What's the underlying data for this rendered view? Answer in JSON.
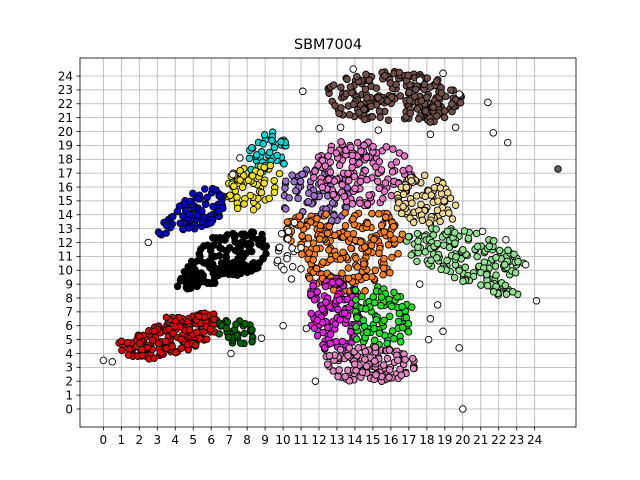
{
  "chart_data": {
    "type": "scatter",
    "title": "SBM7004",
    "xlabel": "",
    "ylabel": "",
    "xlim": [
      -1.3,
      26.3
    ],
    "ylim": [
      -1.3,
      25.3
    ],
    "xticks": [
      0,
      1,
      2,
      3,
      4,
      5,
      6,
      7,
      8,
      9,
      10,
      11,
      12,
      13,
      14,
      15,
      16,
      17,
      18,
      19,
      20,
      21,
      22,
      23,
      24
    ],
    "yticks": [
      0,
      1,
      2,
      3,
      4,
      5,
      6,
      7,
      8,
      9,
      10,
      11,
      12,
      13,
      14,
      15,
      16,
      17,
      18,
      19,
      20,
      21,
      22,
      23,
      24
    ],
    "grid": true,
    "point_stroke": "#000000",
    "clusters": [
      {
        "color": "#705048",
        "polygon": [
          [
            12.5,
            23.3
          ],
          [
            14,
            24.1
          ],
          [
            16,
            24.5
          ],
          [
            18,
            24.0
          ],
          [
            19.8,
            23.2
          ],
          [
            20.2,
            21.5
          ],
          [
            18.6,
            20.6
          ],
          [
            16.5,
            20.8
          ],
          [
            14.5,
            20.8
          ],
          [
            13.1,
            21.2
          ],
          [
            12.4,
            22.3
          ]
        ],
        "count": 220
      },
      {
        "color": "#00d7d7",
        "polygon": [
          [
            7.6,
            18.0
          ],
          [
            8.4,
            19.4
          ],
          [
            9.4,
            20.1
          ],
          [
            10.2,
            19.4
          ],
          [
            10.1,
            17.6
          ],
          [
            9.2,
            17.0
          ],
          [
            8.2,
            17.1
          ]
        ],
        "count": 45
      },
      {
        "color": "#f0e020",
        "polygon": [
          [
            6.9,
            16.6
          ],
          [
            7.6,
            17.6
          ],
          [
            9.1,
            17.7
          ],
          [
            10.0,
            17.1
          ],
          [
            9.8,
            15.6
          ],
          [
            9.0,
            14.5
          ],
          [
            7.7,
            14.2
          ],
          [
            6.9,
            15.0
          ]
        ],
        "count": 60
      },
      {
        "color": "#0000c8",
        "polygon": [
          [
            2.8,
            12.6
          ],
          [
            3.6,
            13.8
          ],
          [
            4.6,
            15.3
          ],
          [
            5.7,
            16.1
          ],
          [
            6.8,
            15.6
          ],
          [
            6.6,
            13.9
          ],
          [
            5.9,
            13.2
          ],
          [
            4.8,
            12.6
          ],
          [
            3.5,
            12.2
          ]
        ],
        "count": 90
      },
      {
        "color": "#000000",
        "polygon": [
          [
            3.9,
            9.1
          ],
          [
            4.6,
            10.2
          ],
          [
            5.4,
            11.6
          ],
          [
            6.5,
            12.8
          ],
          [
            8.8,
            12.8
          ],
          [
            9.2,
            11.3
          ],
          [
            8.6,
            10.0
          ],
          [
            7.1,
            9.5
          ],
          [
            5.4,
            8.6
          ],
          [
            4.2,
            8.7
          ]
        ],
        "count": 170
      },
      {
        "color": "#e00000",
        "polygon": [
          [
            0.6,
            4.4
          ],
          [
            1.6,
            3.7
          ],
          [
            3.2,
            3.5
          ],
          [
            5.0,
            4.4
          ],
          [
            6.2,
            5.4
          ],
          [
            6.4,
            6.8
          ],
          [
            5.3,
            7.0
          ],
          [
            3.5,
            6.6
          ],
          [
            2.1,
            5.4
          ],
          [
            0.9,
            4.9
          ]
        ],
        "count": 190
      },
      {
        "color": "#006400",
        "polygon": [
          [
            6.4,
            5.1
          ],
          [
            7.2,
            4.5
          ],
          [
            8.3,
            4.6
          ],
          [
            8.6,
            5.6
          ],
          [
            8.0,
            6.5
          ],
          [
            6.9,
            6.9
          ],
          [
            6.3,
            6.2
          ]
        ],
        "count": 32
      },
      {
        "color": "#9a70c8",
        "polygon": [
          [
            10.0,
            16.6
          ],
          [
            11.1,
            17.2
          ],
          [
            12.4,
            17.4
          ],
          [
            13.6,
            16.4
          ],
          [
            14.2,
            15.0
          ],
          [
            13.8,
            13.8
          ],
          [
            12.6,
            13.4
          ],
          [
            11.2,
            13.5
          ],
          [
            10.1,
            14.2
          ]
        ],
        "count": 80
      },
      {
        "color": "#e878c8",
        "polygon": [
          [
            11.6,
            18.0
          ],
          [
            12.6,
            18.9
          ],
          [
            13.6,
            19.5
          ],
          [
            15.0,
            19.3
          ],
          [
            16.8,
            18.4
          ],
          [
            17.3,
            17.2
          ],
          [
            16.9,
            15.5
          ],
          [
            15.5,
            14.7
          ],
          [
            13.8,
            14.6
          ],
          [
            12.4,
            15.6
          ],
          [
            11.7,
            16.7
          ]
        ],
        "count": 150
      },
      {
        "color": "#f0d890",
        "polygon": [
          [
            16.7,
            16.7
          ],
          [
            17.8,
            17.0
          ],
          [
            19.2,
            16.2
          ],
          [
            19.8,
            14.9
          ],
          [
            19.4,
            13.6
          ],
          [
            17.8,
            13.2
          ],
          [
            16.5,
            13.8
          ],
          [
            16.1,
            15.2
          ]
        ],
        "count": 80
      },
      {
        "color": "#ff7f20",
        "polygon": [
          [
            9.9,
            13.2
          ],
          [
            10.6,
            13.9
          ],
          [
            12.6,
            14.1
          ],
          [
            14.6,
            14.4
          ],
          [
            16.2,
            14.0
          ],
          [
            16.7,
            12.6
          ],
          [
            16.3,
            10.6
          ],
          [
            15.6,
            8.8
          ],
          [
            13.8,
            8.2
          ],
          [
            12.1,
            8.4
          ],
          [
            11.4,
            9.4
          ],
          [
            11.1,
            11.1
          ],
          [
            10.2,
            12.0
          ]
        ],
        "count": 240
      },
      {
        "color": "#90e090",
        "polygon": [
          [
            16.6,
            12.1
          ],
          [
            17.5,
            13.1
          ],
          [
            19.4,
            13.1
          ],
          [
            21.0,
            12.6
          ],
          [
            22.6,
            11.6
          ],
          [
            23.4,
            10.5
          ],
          [
            22.6,
            9.3
          ],
          [
            23.4,
            8.2
          ],
          [
            22.0,
            8.0
          ],
          [
            20.4,
            8.8
          ],
          [
            18.6,
            9.9
          ],
          [
            17.4,
            10.6
          ]
        ],
        "count": 170
      },
      {
        "color": "#e020e0",
        "polygon": [
          [
            11.7,
            9.3
          ],
          [
            13.1,
            9.4
          ],
          [
            14.1,
            8.6
          ],
          [
            14.3,
            6.9
          ],
          [
            14.2,
            5.2
          ],
          [
            13.5,
            4.2
          ],
          [
            12.2,
            4.3
          ],
          [
            11.6,
            5.4
          ],
          [
            11.4,
            7.0
          ],
          [
            11.5,
            8.3
          ]
        ],
        "count": 120
      },
      {
        "color": "#20e020",
        "polygon": [
          [
            14.0,
            8.6
          ],
          [
            15.3,
            8.8
          ],
          [
            16.3,
            8.5
          ],
          [
            17.2,
            7.6
          ],
          [
            17.1,
            5.6
          ],
          [
            16.4,
            4.6
          ],
          [
            15.0,
            4.4
          ],
          [
            14.0,
            5.1
          ]
        ],
        "count": 90
      },
      {
        "color": "#e088c0",
        "polygon": [
          [
            12.2,
            4.0
          ],
          [
            13.4,
            4.4
          ],
          [
            15.2,
            4.5
          ],
          [
            16.6,
            4.4
          ],
          [
            17.6,
            3.2
          ],
          [
            16.4,
            2.1
          ],
          [
            14.6,
            1.9
          ],
          [
            13.1,
            2.0
          ],
          [
            12.6,
            2.8
          ]
        ],
        "count": 120
      },
      {
        "color": "#ffffff",
        "polygon": [
          [
            9.8,
            12.6
          ],
          [
            10.6,
            13.6
          ],
          [
            11.4,
            12.2
          ],
          [
            11.0,
            10.0
          ],
          [
            10.4,
            9.2
          ],
          [
            9.6,
            10.6
          ]
        ],
        "count": 18
      }
    ],
    "scattered_points": [
      {
        "x": 25.3,
        "y": 17.3,
        "color": "#606060"
      },
      {
        "x": 20.0,
        "y": 0.0,
        "color": "#ffffff"
      },
      {
        "x": 22.5,
        "y": 19.2,
        "color": "#ffffff"
      },
      {
        "x": 21.4,
        "y": 22.1,
        "color": "#ffffff"
      },
      {
        "x": 21.7,
        "y": 19.9,
        "color": "#ffffff"
      },
      {
        "x": 11.1,
        "y": 22.9,
        "color": "#ffffff"
      },
      {
        "x": 13.9,
        "y": 24.5,
        "color": "#ffffff"
      },
      {
        "x": 18.9,
        "y": 24.2,
        "color": "#ffffff"
      },
      {
        "x": 19.8,
        "y": 22.7,
        "color": "#ffffff"
      },
      {
        "x": 17.6,
        "y": 23.7,
        "color": "#ffffff"
      },
      {
        "x": 12.0,
        "y": 20.2,
        "color": "#ffffff"
      },
      {
        "x": 19.6,
        "y": 20.3,
        "color": "#ffffff"
      },
      {
        "x": 18.2,
        "y": 19.8,
        "color": "#ffffff"
      },
      {
        "x": 0.0,
        "y": 3.5,
        "color": "#ffffff"
      },
      {
        "x": 0.5,
        "y": 3.4,
        "color": "#ffffff"
      },
      {
        "x": 10.0,
        "y": 6.0,
        "color": "#ffffff"
      },
      {
        "x": 8.8,
        "y": 5.1,
        "color": "#ffffff"
      },
      {
        "x": 7.1,
        "y": 4.0,
        "color": "#ffffff"
      },
      {
        "x": 11.9,
        "y": 6.4,
        "color": "#e020e0"
      },
      {
        "x": 11.8,
        "y": 2.0,
        "color": "#ffffff"
      },
      {
        "x": 18.6,
        "y": 7.5,
        "color": "#ffffff"
      },
      {
        "x": 18.2,
        "y": 6.5,
        "color": "#ffffff"
      },
      {
        "x": 18.1,
        "y": 5.0,
        "color": "#ffffff"
      },
      {
        "x": 19.8,
        "y": 4.4,
        "color": "#ffffff"
      },
      {
        "x": 18.9,
        "y": 5.6,
        "color": "#ffffff"
      },
      {
        "x": 24.1,
        "y": 7.8,
        "color": "#ffffff"
      },
      {
        "x": 23.5,
        "y": 10.4,
        "color": "#ffffff"
      },
      {
        "x": 21.1,
        "y": 12.8,
        "color": "#ffffff"
      },
      {
        "x": 22.4,
        "y": 12.2,
        "color": "#ffffff"
      },
      {
        "x": 11.0,
        "y": 10.1,
        "color": "#ffffff"
      },
      {
        "x": 10.5,
        "y": 11.6,
        "color": "#ffffff"
      },
      {
        "x": 9.7,
        "y": 10.7,
        "color": "#ffffff"
      },
      {
        "x": 10.3,
        "y": 12.8,
        "color": "#ffffff"
      },
      {
        "x": 2.5,
        "y": 12.0,
        "color": "#ffffff"
      },
      {
        "x": 7.6,
        "y": 18.1,
        "color": "#ffffff"
      },
      {
        "x": 7.2,
        "y": 16.9,
        "color": "#ffffff"
      },
      {
        "x": 11.3,
        "y": 5.8,
        "color": "#ffffff"
      },
      {
        "x": 17.6,
        "y": 9.0,
        "color": "#ffffff"
      },
      {
        "x": 15.3,
        "y": 20.1,
        "color": "#ffffff"
      },
      {
        "x": 13.2,
        "y": 20.3,
        "color": "#ffffff"
      }
    ]
  }
}
